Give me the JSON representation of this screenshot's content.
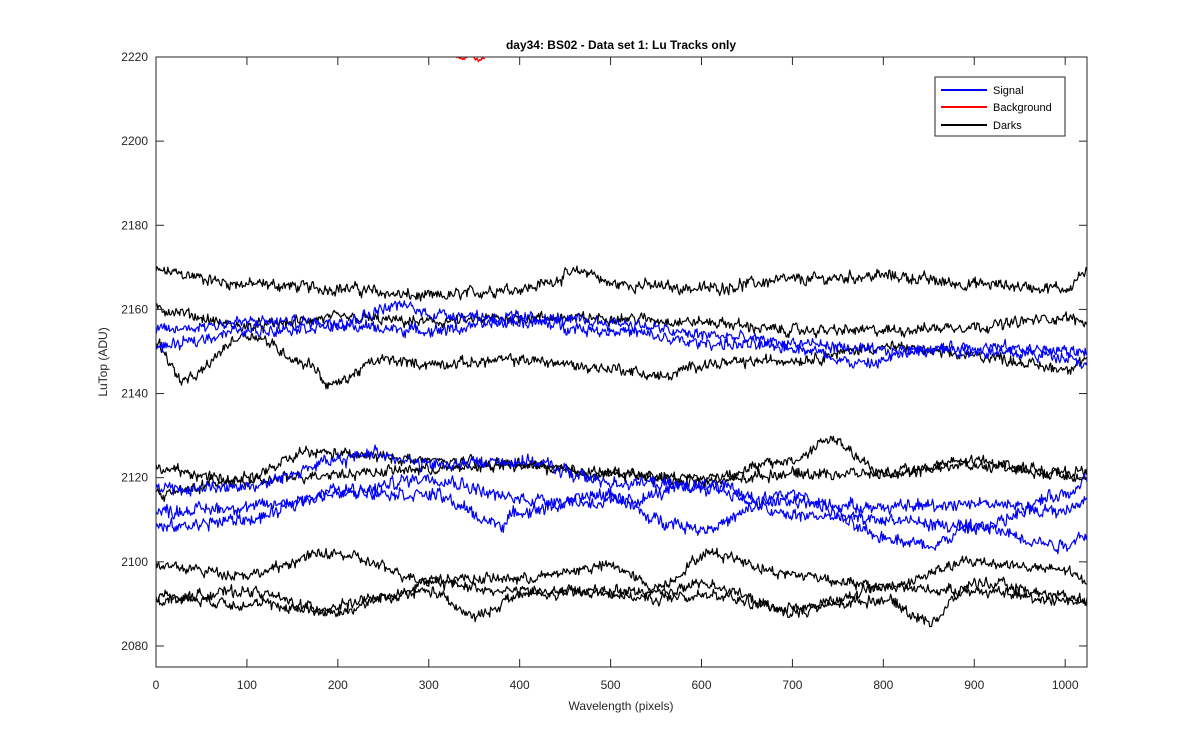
{
  "chart_data": {
    "type": "line",
    "title": "day34: BS02 - Data set 1: Lu Tracks only",
    "xlabel": "Wavelength (pixels)",
    "ylabel": "LuTop (ADU)",
    "xlim": [
      0,
      1024
    ],
    "ylim": [
      2075,
      2220
    ],
    "xticks": [
      0,
      100,
      200,
      300,
      400,
      500,
      600,
      700,
      800,
      900,
      1000
    ],
    "yticks": [
      2080,
      2100,
      2120,
      2140,
      2160,
      2180,
      2200,
      2220
    ],
    "grid": false,
    "legend": {
      "position": "top-right",
      "entries": [
        "Signal",
        "Background",
        "Darks"
      ]
    },
    "colors": {
      "Signal": "#0000ff",
      "Background": "#ff0000",
      "Darks": "#000000"
    },
    "series": [
      {
        "name": "Darks",
        "group": "Darks",
        "anchors": [
          [
            0,
            2169
          ],
          [
            100,
            2166
          ],
          [
            200,
            2165
          ],
          [
            300,
            2163
          ],
          [
            400,
            2165
          ],
          [
            475,
            2169
          ],
          [
            500,
            2166
          ],
          [
            600,
            2165
          ],
          [
            700,
            2167
          ],
          [
            800,
            2168
          ],
          [
            900,
            2166
          ],
          [
            1000,
            2165
          ],
          [
            1024,
            2169
          ]
        ],
        "noise": 1.1
      },
      {
        "name": "Darks",
        "group": "Darks",
        "anchors": [
          [
            0,
            2160
          ],
          [
            100,
            2156
          ],
          [
            200,
            2158
          ],
          [
            300,
            2157
          ],
          [
            400,
            2158
          ],
          [
            500,
            2158
          ],
          [
            600,
            2157
          ],
          [
            700,
            2155
          ],
          [
            800,
            2155
          ],
          [
            900,
            2156
          ],
          [
            1000,
            2158
          ],
          [
            1024,
            2157
          ]
        ],
        "noise": 1.0
      },
      {
        "name": "Darks",
        "group": "Darks",
        "anchors": [
          [
            0,
            2152
          ],
          [
            30,
            2143
          ],
          [
            100,
            2154
          ],
          [
            170,
            2147
          ],
          [
            190,
            2142
          ],
          [
            250,
            2148
          ],
          [
            300,
            2147
          ],
          [
            400,
            2148
          ],
          [
            500,
            2146
          ],
          [
            560,
            2144
          ],
          [
            600,
            2147
          ],
          [
            700,
            2148
          ],
          [
            800,
            2151
          ],
          [
            900,
            2149
          ],
          [
            1000,
            2146
          ],
          [
            1024,
            2148
          ]
        ],
        "noise": 1.0
      },
      {
        "name": "Signal",
        "group": "Signal",
        "anchors": [
          [
            0,
            2155
          ],
          [
            100,
            2157
          ],
          [
            200,
            2157
          ],
          [
            270,
            2161
          ],
          [
            300,
            2159
          ],
          [
            400,
            2158
          ],
          [
            500,
            2157
          ],
          [
            600,
            2154
          ],
          [
            700,
            2152
          ],
          [
            800,
            2150
          ],
          [
            900,
            2151
          ],
          [
            1024,
            2150
          ]
        ],
        "noise": 1.1
      },
      {
        "name": "Signal",
        "group": "Signal",
        "anchors": [
          [
            0,
            2151
          ],
          [
            100,
            2155
          ],
          [
            200,
            2156
          ],
          [
            300,
            2155
          ],
          [
            400,
            2157
          ],
          [
            500,
            2155
          ],
          [
            600,
            2152
          ],
          [
            700,
            2151
          ],
          [
            780,
            2147
          ],
          [
            850,
            2151
          ],
          [
            900,
            2150
          ],
          [
            1000,
            2149
          ],
          [
            1024,
            2147
          ]
        ],
        "noise": 1.1
      },
      {
        "name": "Darks",
        "group": "Darks",
        "anchors": [
          [
            0,
            2122
          ],
          [
            100,
            2119
          ],
          [
            200,
            2121
          ],
          [
            300,
            2122
          ],
          [
            400,
            2123
          ],
          [
            500,
            2121
          ],
          [
            600,
            2120
          ],
          [
            700,
            2124
          ],
          [
            740,
            2129
          ],
          [
            800,
            2121
          ],
          [
            900,
            2124
          ],
          [
            1000,
            2121
          ],
          [
            1024,
            2122
          ]
        ],
        "noise": 1.0
      },
      {
        "name": "Darks",
        "group": "Darks",
        "anchors": [
          [
            0,
            2116
          ],
          [
            100,
            2120
          ],
          [
            170,
            2126
          ],
          [
            250,
            2125
          ],
          [
            300,
            2124
          ],
          [
            400,
            2123
          ],
          [
            500,
            2121
          ],
          [
            600,
            2119
          ],
          [
            700,
            2121
          ],
          [
            800,
            2121
          ],
          [
            900,
            2123
          ],
          [
            1000,
            2121
          ],
          [
            1024,
            2120
          ]
        ],
        "noise": 1.0
      },
      {
        "name": "Signal",
        "group": "Signal",
        "anchors": [
          [
            0,
            2117
          ],
          [
            100,
            2118
          ],
          [
            200,
            2124
          ],
          [
            240,
            2126
          ],
          [
            300,
            2123
          ],
          [
            400,
            2124
          ],
          [
            500,
            2119
          ],
          [
            600,
            2118
          ],
          [
            700,
            2114
          ],
          [
            800,
            2113
          ],
          [
            900,
            2114
          ],
          [
            1000,
            2112
          ],
          [
            1024,
            2115
          ]
        ],
        "noise": 1.2
      },
      {
        "name": "Signal",
        "group": "Signal",
        "anchors": [
          [
            0,
            2112
          ],
          [
            100,
            2113
          ],
          [
            200,
            2116
          ],
          [
            300,
            2120
          ],
          [
            400,
            2115
          ],
          [
            500,
            2114
          ],
          [
            600,
            2118
          ],
          [
            700,
            2111
          ],
          [
            800,
            2110
          ],
          [
            900,
            2108
          ],
          [
            1000,
            2116
          ],
          [
            1024,
            2120
          ]
        ],
        "noise": 1.2
      },
      {
        "name": "Signal",
        "group": "Signal",
        "anchors": [
          [
            0,
            2108
          ],
          [
            100,
            2110
          ],
          [
            200,
            2117
          ],
          [
            300,
            2116
          ],
          [
            380,
            2109
          ],
          [
            400,
            2112
          ],
          [
            500,
            2116
          ],
          [
            550,
            2110
          ],
          [
            600,
            2108
          ],
          [
            700,
            2116
          ],
          [
            800,
            2106
          ],
          [
            850,
            2104
          ],
          [
            900,
            2108
          ],
          [
            1000,
            2104
          ],
          [
            1024,
            2107
          ]
        ],
        "noise": 1.2
      },
      {
        "name": "Darks",
        "group": "Darks",
        "anchors": [
          [
            0,
            2099
          ],
          [
            100,
            2097
          ],
          [
            190,
            2102
          ],
          [
            300,
            2096
          ],
          [
            400,
            2096
          ],
          [
            500,
            2099
          ],
          [
            550,
            2094
          ],
          [
            610,
            2102
          ],
          [
            700,
            2097
          ],
          [
            800,
            2094
          ],
          [
            900,
            2100
          ],
          [
            1000,
            2098
          ],
          [
            1024,
            2095
          ]
        ],
        "noise": 1.0
      },
      {
        "name": "Darks",
        "group": "Darks",
        "anchors": [
          [
            0,
            2091
          ],
          [
            100,
            2093
          ],
          [
            180,
            2089
          ],
          [
            240,
            2091
          ],
          [
            300,
            2093
          ],
          [
            350,
            2087
          ],
          [
            400,
            2092
          ],
          [
            500,
            2093
          ],
          [
            600,
            2092
          ],
          [
            700,
            2089
          ],
          [
            800,
            2091
          ],
          [
            850,
            2086
          ],
          [
            900,
            2095
          ],
          [
            1000,
            2092
          ],
          [
            1024,
            2091
          ]
        ],
        "noise": 1.0
      },
      {
        "name": "Darks",
        "group": "Darks",
        "anchors": [
          [
            0,
            2092
          ],
          [
            100,
            2090
          ],
          [
            200,
            2088
          ],
          [
            260,
            2092
          ],
          [
            300,
            2095
          ],
          [
            400,
            2093
          ],
          [
            480,
            2093
          ],
          [
            550,
            2091
          ],
          [
            600,
            2095
          ],
          [
            700,
            2088
          ],
          [
            800,
            2094
          ],
          [
            900,
            2093
          ],
          [
            1000,
            2091
          ],
          [
            1024,
            2090
          ]
        ],
        "noise": 1.0
      },
      {
        "name": "Background",
        "group": "Background",
        "anchors": [
          [
            328,
            2220.2
          ],
          [
            338,
            2219.5
          ],
          [
            346,
            2220.4
          ],
          [
            355,
            2219.2
          ],
          [
            362,
            2220.1
          ]
        ],
        "noise": 0.3
      }
    ]
  }
}
